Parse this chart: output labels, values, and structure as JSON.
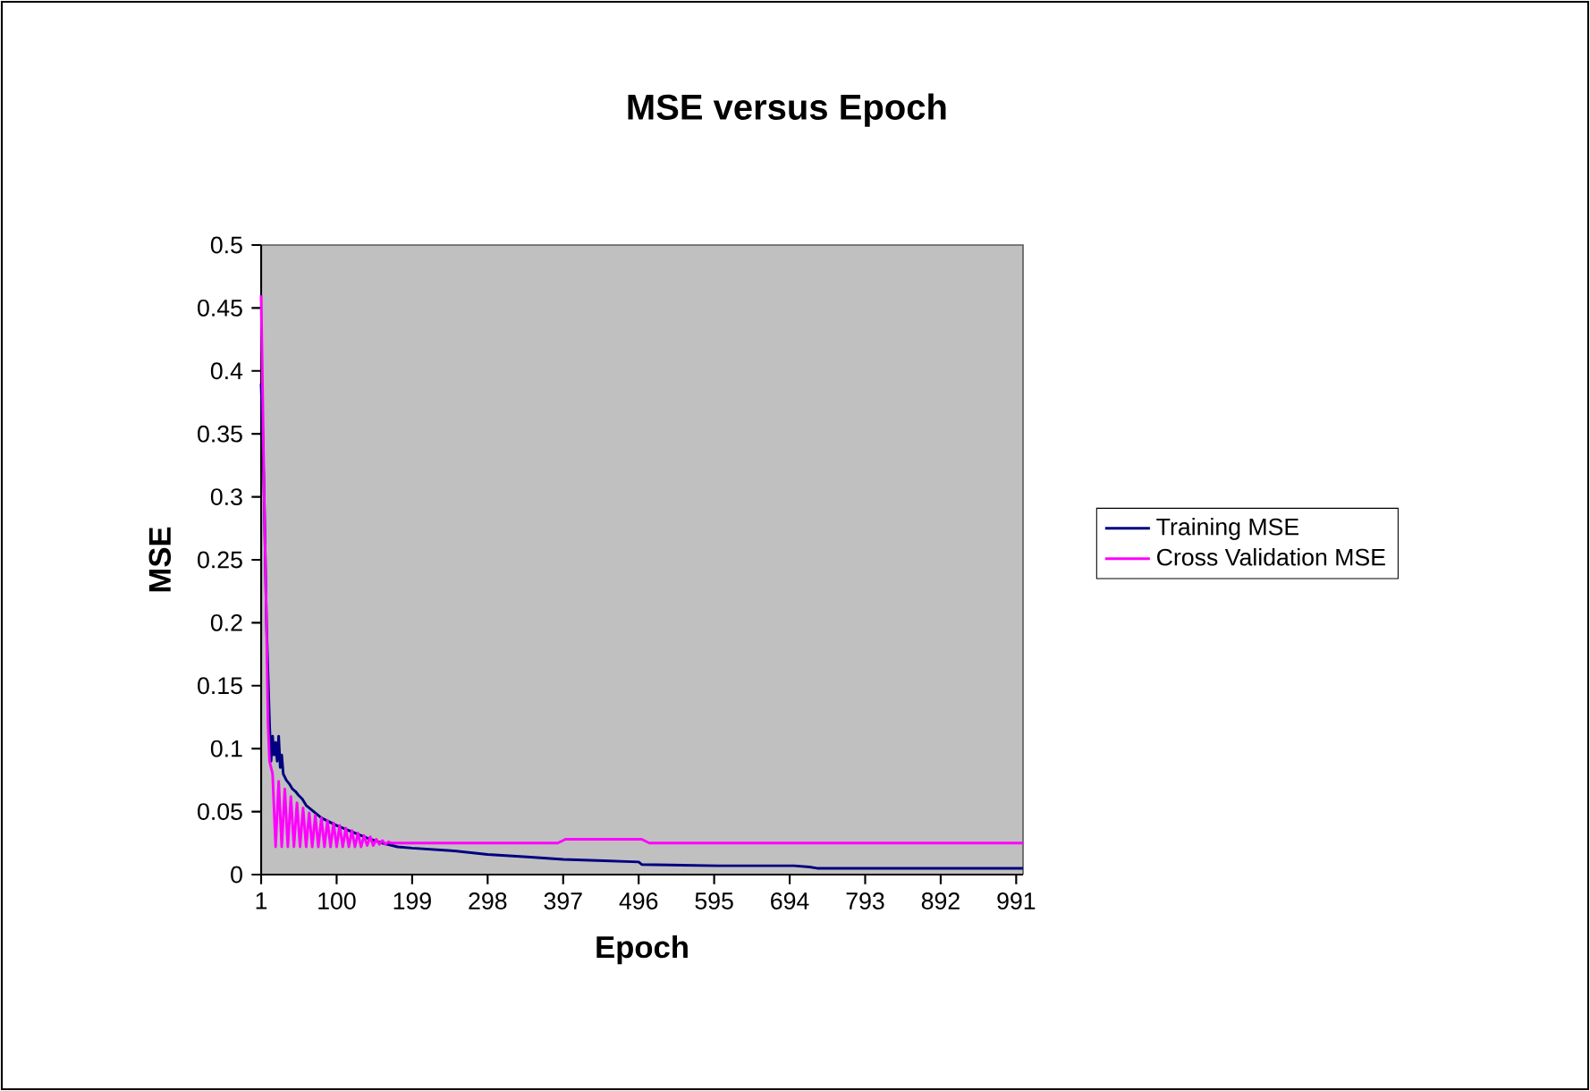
{
  "chart_data": {
    "type": "line",
    "title": "MSE versus Epoch",
    "xlabel": "Epoch",
    "ylabel": "MSE",
    "xlim": [
      1,
      1000
    ],
    "xticks": [
      1,
      100,
      199,
      298,
      397,
      496,
      595,
      694,
      793,
      892,
      991
    ],
    "ylim": [
      0,
      0.5
    ],
    "yticks": [
      0,
      0.05,
      0.1,
      0.15,
      0.2,
      0.25,
      0.3,
      0.35,
      0.4,
      0.45,
      0.5
    ],
    "grid": false,
    "legend": "right",
    "marker": "none",
    "line_style": "solid",
    "series": [
      {
        "name": "Training MSE",
        "color": "#000080",
        "x": [
          1,
          3,
          5,
          8,
          10,
          12,
          14,
          16,
          18,
          20,
          22,
          24,
          26,
          28,
          30,
          34,
          38,
          42,
          46,
          50,
          55,
          60,
          70,
          80,
          90,
          100,
          120,
          140,
          160,
          180,
          199,
          250,
          298,
          350,
          397,
          450,
          496,
          500,
          600,
          700,
          720,
          730,
          800,
          900,
          1000
        ],
        "values": [
          0.39,
          0.35,
          0.3,
          0.2,
          null,
          0.12,
          0.09,
          0.11,
          0.095,
          0.105,
          0.09,
          0.11,
          0.085,
          0.095,
          0.08,
          0.075,
          0.072,
          0.068,
          0.066,
          0.063,
          0.06,
          0.055,
          0.05,
          0.045,
          0.042,
          0.039,
          0.034,
          0.029,
          0.025,
          0.022,
          0.021,
          0.019,
          0.016,
          0.014,
          0.012,
          0.011,
          0.01,
          0.008,
          0.007,
          0.007,
          0.006,
          0.005,
          0.005,
          0.005,
          0.005
        ]
      },
      {
        "name": "Cross Validation MSE",
        "color": "#ff00ff",
        "x": [
          1,
          3,
          5,
          8,
          10,
          12,
          16,
          20,
          24,
          28,
          32,
          36,
          40,
          44,
          48,
          52,
          56,
          60,
          64,
          68,
          72,
          76,
          80,
          84,
          88,
          92,
          96,
          100,
          104,
          108,
          112,
          116,
          120,
          124,
          128,
          132,
          136,
          140,
          144,
          148,
          152,
          156,
          160,
          164,
          168,
          172,
          180,
          250,
          390,
          400,
          500,
          510,
          600,
          800,
          1000
        ],
        "values": [
          0.46,
          0.38,
          0.3,
          0.2,
          0.12,
          0.09,
          0.08,
          0.022,
          0.074,
          0.022,
          0.068,
          0.022,
          0.062,
          0.022,
          0.057,
          0.022,
          0.053,
          0.022,
          0.049,
          0.022,
          0.047,
          0.022,
          0.045,
          0.022,
          0.043,
          0.022,
          0.041,
          0.022,
          0.039,
          0.022,
          0.037,
          0.022,
          0.035,
          0.022,
          0.033,
          0.022,
          0.031,
          0.023,
          0.03,
          0.023,
          0.028,
          0.024,
          0.027,
          0.024,
          0.026,
          0.025,
          0.025,
          0.025,
          0.025,
          0.028,
          0.028,
          0.025,
          0.025,
          0.025,
          0.025
        ]
      }
    ]
  }
}
